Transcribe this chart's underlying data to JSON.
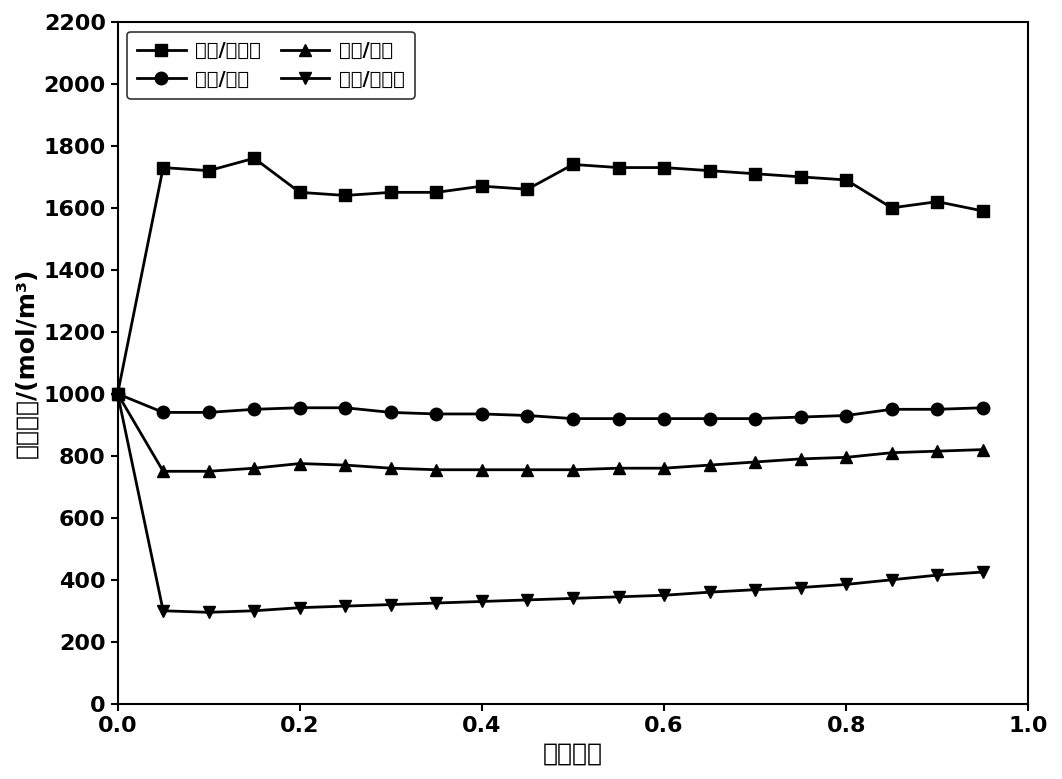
{
  "title": "",
  "xlabel": "放电深度",
  "ylabel": "界面浓度/(mol/m³)",
  "xlim": [
    0,
    1.0
  ],
  "ylim": [
    0,
    2200
  ],
  "xticks": [
    0,
    0.2,
    0.4,
    0.6,
    0.8,
    1.0
  ],
  "yticks": [
    0,
    200,
    400,
    600,
    800,
    1000,
    1200,
    1400,
    1600,
    1800,
    2000,
    2200
  ],
  "series": [
    {
      "label": "负极/集流体",
      "marker": "s",
      "x": [
        0,
        0.05,
        0.1,
        0.15,
        0.2,
        0.25,
        0.3,
        0.35,
        0.4,
        0.45,
        0.5,
        0.55,
        0.6,
        0.65,
        0.7,
        0.75,
        0.8,
        0.85,
        0.9,
        0.95
      ],
      "y": [
        1000,
        1730,
        1720,
        1760,
        1650,
        1640,
        1650,
        1650,
        1670,
        1660,
        1740,
        1730,
        1730,
        1720,
        1710,
        1700,
        1690,
        1600,
        1620,
        1590
      ]
    },
    {
      "label": "负极/隔膜",
      "marker": "o",
      "x": [
        0,
        0.05,
        0.1,
        0.15,
        0.2,
        0.25,
        0.3,
        0.35,
        0.4,
        0.45,
        0.5,
        0.55,
        0.6,
        0.65,
        0.7,
        0.75,
        0.8,
        0.85,
        0.9,
        0.95
      ],
      "y": [
        1000,
        940,
        940,
        950,
        955,
        955,
        940,
        935,
        935,
        930,
        920,
        920,
        920,
        920,
        920,
        925,
        930,
        950,
        950,
        955
      ]
    },
    {
      "label": "正极/隔膜",
      "marker": "^",
      "x": [
        0,
        0.05,
        0.1,
        0.15,
        0.2,
        0.25,
        0.3,
        0.35,
        0.4,
        0.45,
        0.5,
        0.55,
        0.6,
        0.65,
        0.7,
        0.75,
        0.8,
        0.85,
        0.9,
        0.95
      ],
      "y": [
        1000,
        750,
        750,
        760,
        775,
        770,
        760,
        755,
        755,
        755,
        755,
        760,
        760,
        770,
        780,
        790,
        795,
        810,
        815,
        820
      ]
    },
    {
      "label": "正极/集流体",
      "marker": "v",
      "x": [
        0,
        0.05,
        0.1,
        0.15,
        0.2,
        0.25,
        0.3,
        0.35,
        0.4,
        0.45,
        0.5,
        0.55,
        0.6,
        0.65,
        0.7,
        0.75,
        0.8,
        0.85,
        0.9,
        0.95
      ],
      "y": [
        1000,
        300,
        295,
        300,
        310,
        315,
        320,
        325,
        330,
        335,
        340,
        345,
        350,
        360,
        368,
        375,
        385,
        400,
        415,
        425
      ]
    }
  ],
  "line_color": "#000000",
  "background_color": "#ffffff",
  "legend_ncol": 2,
  "fontsize_tick": 16,
  "fontsize_label": 18,
  "fontsize_legend": 14,
  "linewidth": 2.0,
  "markersize": 9
}
